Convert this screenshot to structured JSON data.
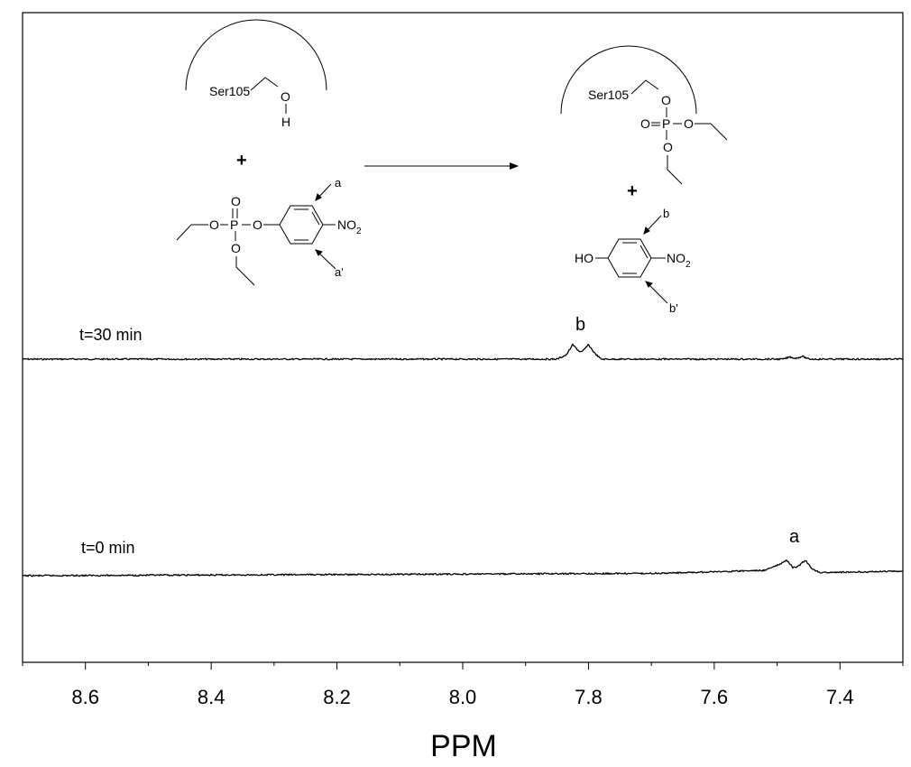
{
  "chart_data": {
    "type": "line",
    "xlabel": "PPM",
    "ylabel": "",
    "xlim": [
      8.7,
      7.3
    ],
    "x_reversed": true,
    "ticks": [
      "8.6",
      "8.4",
      "8.2",
      "8.0",
      "7.8",
      "7.6",
      "7.4"
    ],
    "tick_values": [
      8.6,
      8.4,
      8.2,
      8.0,
      7.8,
      7.6,
      7.4
    ],
    "grid": false,
    "legend": "none",
    "series": [
      {
        "name": "t=30 min",
        "peak_label": "b",
        "points": [
          [
            8.7,
            0.0
          ],
          [
            7.85,
            0.0
          ],
          [
            7.835,
            0.3
          ],
          [
            7.825,
            1.0
          ],
          [
            7.815,
            0.55
          ],
          [
            7.81,
            0.5
          ],
          [
            7.8,
            1.0
          ],
          [
            7.79,
            0.4
          ],
          [
            7.78,
            0.0
          ],
          [
            7.49,
            0.0
          ],
          [
            7.48,
            0.15
          ],
          [
            7.47,
            0.05
          ],
          [
            7.46,
            0.2
          ],
          [
            7.45,
            0.0
          ],
          [
            7.3,
            0.0
          ]
        ]
      },
      {
        "name": "t=0 min",
        "peak_label": "a",
        "points": [
          [
            8.7,
            0.0
          ],
          [
            7.7,
            0.15
          ],
          [
            7.6,
            0.25
          ],
          [
            7.52,
            0.35
          ],
          [
            7.495,
            0.75
          ],
          [
            7.485,
            1.0
          ],
          [
            7.475,
            0.55
          ],
          [
            7.47,
            0.5
          ],
          [
            7.455,
            1.0
          ],
          [
            7.445,
            0.45
          ],
          [
            7.43,
            0.2
          ],
          [
            7.3,
            0.3
          ]
        ]
      }
    ]
  },
  "scheme": {
    "reactant_enzyme_label": "Ser105",
    "oh_o": "O",
    "oh_h": "H",
    "plus1": "+",
    "reactant_p": "P",
    "reactant_o_top": "O",
    "reactant_o_left": "O",
    "reactant_o_right": "O",
    "reactant_o_bottom": "O",
    "reactant_no2": "NO",
    "reactant_no2_sub": "2",
    "label_a": "a",
    "label_a_prime": "a'",
    "product_enzyme_label": "Ser105",
    "product_o_top": "O",
    "product_o_left": "O",
    "product_p": "P",
    "product_o_right": "O",
    "product_o_bottom": "O",
    "plus2": "+",
    "product_ho": "HO",
    "product_no2": "NO",
    "product_no2_sub": "2",
    "label_b": "b",
    "label_b_prime": "b'"
  }
}
